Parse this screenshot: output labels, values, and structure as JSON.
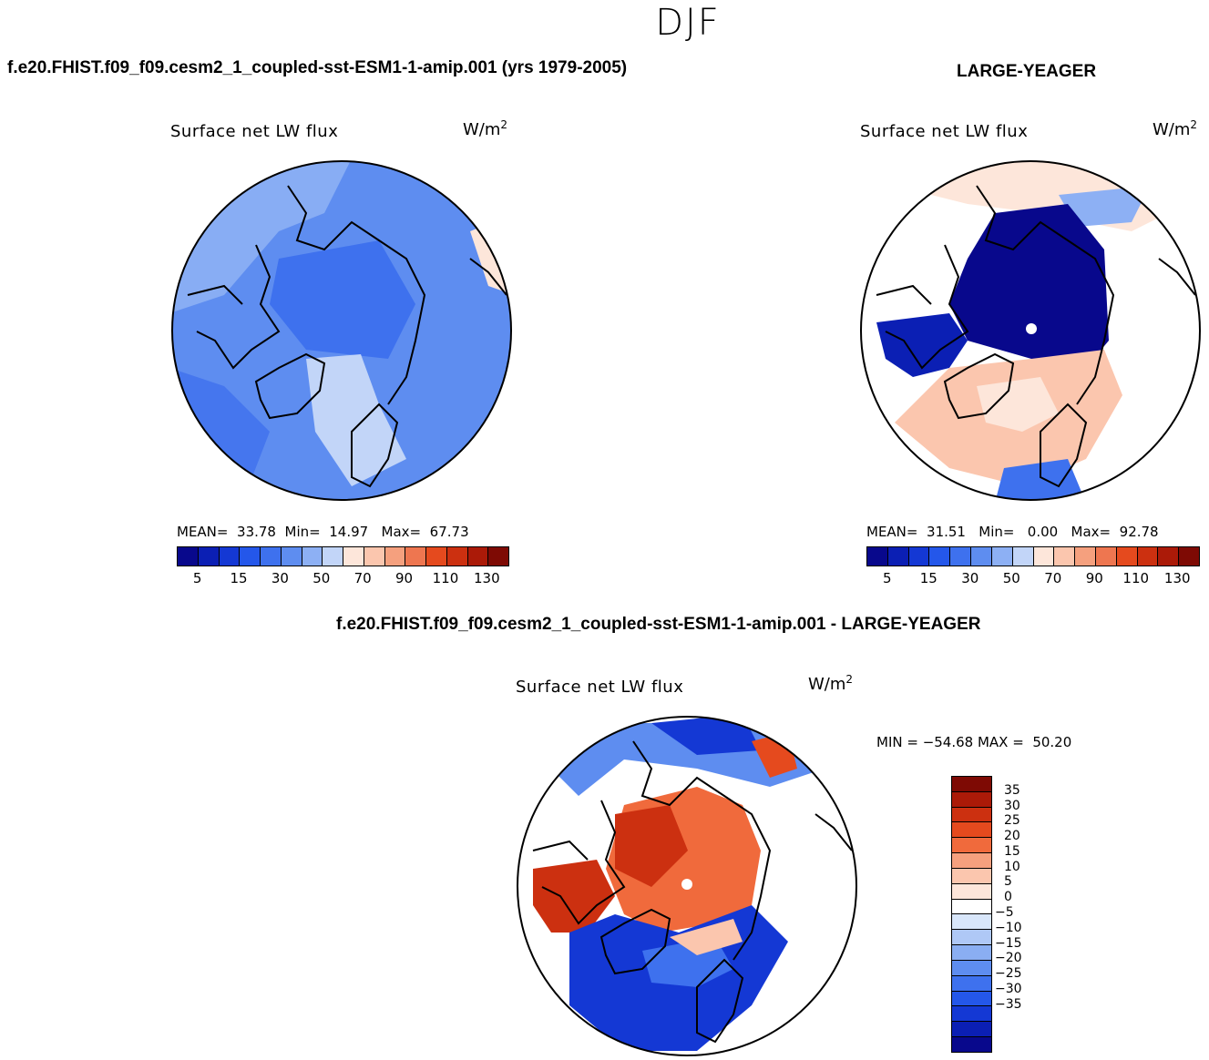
{
  "page": {
    "season": "DJF",
    "title_left": "f.e20.FHIST.f09_f09.cesm2_1_coupled-sst-ESM1-1-amip.001 (yrs 1979-2005)",
    "title_right": "LARGE-YEAGER",
    "title_diff": "f.e20.FHIST.f09_f09.cesm2_1_coupled-sst-ESM1-1-amip.001 - LARGE-YEAGER"
  },
  "colors": {
    "abs_scale": [
      "#08088c",
      "#0b1fb4",
      "#1438d4",
      "#2457ea",
      "#3e71ee",
      "#5e8df0",
      "#8db0f4",
      "#c2d5f8",
      "#fde6da",
      "#fbc6ae",
      "#f5a07e",
      "#ee7650",
      "#e54a1e",
      "#cc3010",
      "#ab1a08",
      "#7e0a04"
    ],
    "diff_scale": [
      "#7e0a04",
      "#ab1a08",
      "#cc3010",
      "#e54a1e",
      "#f06a3c",
      "#f5a07e",
      "#fbc6ae",
      "#fde6da",
      "#ffffff",
      "#d8e6fa",
      "#afc8f6",
      "#8aaef2",
      "#5e8df0",
      "#3e71ee",
      "#2457ea",
      "#1438d4",
      "#0b1fb4",
      "#08088c"
    ],
    "land_outline": "#000000",
    "pole_marker": "#ffffff"
  },
  "chart_data": [
    {
      "type": "polar_contour_map",
      "panel": "model",
      "title": "f.e20.FHIST.f09_f09.cesm2_1_coupled-sst-ESM1-1-amip.001 (yrs 1979-2005)",
      "variable": "Surface net LW flux",
      "units_base": "W/m",
      "units_exp": "2",
      "stats": {
        "mean_label": "MEAN=",
        "mean": "33.78",
        "min_label": "Min=",
        "min": "14.97",
        "max_label": "Max=",
        "max": "67.73"
      },
      "colorbar_ticks": [
        "5",
        "15",
        "30",
        "50",
        "70",
        "90",
        "110",
        "130"
      ],
      "levels": [
        0,
        5,
        10,
        15,
        20,
        30,
        40,
        50,
        60,
        70,
        80,
        90,
        100,
        110,
        120,
        130
      ]
    },
    {
      "type": "polar_contour_map",
      "panel": "obs",
      "title": "LARGE-YEAGER",
      "variable": "Surface net LW flux",
      "units_base": "W/m",
      "units_exp": "2",
      "stats": {
        "mean_label": "MEAN=",
        "mean": "31.51",
        "min_label": "Min=",
        "min": "0.00",
        "max_label": "Max=",
        "max": "92.78"
      },
      "colorbar_ticks": [
        "5",
        "15",
        "30",
        "50",
        "70",
        "90",
        "110",
        "130"
      ],
      "levels": [
        0,
        5,
        10,
        15,
        20,
        30,
        40,
        50,
        60,
        70,
        80,
        90,
        100,
        110,
        120,
        130
      ]
    },
    {
      "type": "polar_contour_map",
      "panel": "difference",
      "title": "f.e20.FHIST.f09_f09.cesm2_1_coupled-sst-ESM1-1-amip.001 - LARGE-YEAGER",
      "variable": "Surface net LW flux",
      "units_base": "W/m",
      "units_exp": "2",
      "range_text": "MIN = −54.68 MAX =  50.20",
      "min": -54.68,
      "max": 50.2,
      "colorbar_ticks": [
        "35",
        "30",
        "25",
        "20",
        "15",
        "10",
        "5",
        "0",
        "−5",
        "−10",
        "−15",
        "−20",
        "−25",
        "−30",
        "−35"
      ]
    }
  ]
}
